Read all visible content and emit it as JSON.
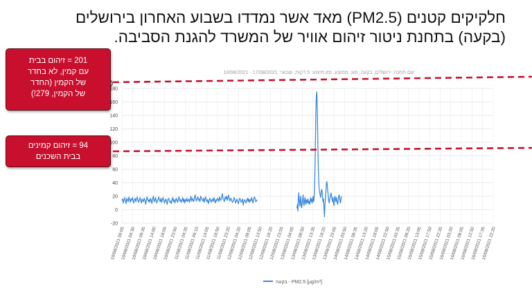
{
  "slide": {
    "title_line1": "חלקיקים קטנים (PM2.5) מאד אשר נמדדו בשבוע האחרון בירושלים",
    "title_line2": "(בקעה) בתחנת ניטור זיהום אוויר של המשרד להגנת הסביבה."
  },
  "callouts": {
    "top_lines": [
      "201 = זיהום בבית",
      "עם קמין, לא בחדר",
      "של הקמין (החדר",
      "של הקמין, 279!)"
    ],
    "bottom_lines": [
      "94 = זיהום קמינים",
      "בבית השכנים"
    ],
    "color": "#c8102e"
  },
  "reference_lines": {
    "upper_label": "200",
    "color": "#c8102e"
  },
  "chart_data": {
    "type": "line",
    "subtitle": "שם תחנה: ירושלים, בקעה, סוג: ממוצע, זמן מיצוע: 5 דקות, שבועי: 17/08/2021 - 10/08/2021",
    "ylim": [
      -20,
      180
    ],
    "yticks": [
      -20,
      0,
      20,
      40,
      60,
      80,
      100,
      120,
      140,
      160,
      180
    ],
    "ytick_labels": [
      "-20",
      "0",
      "20",
      "40",
      "60",
      "80",
      "100",
      "120",
      "140",
      "160",
      "180"
    ],
    "grid": true,
    "legend_position": "bottom-center",
    "line_color": "#3b8ad9",
    "xtick_labels": [
      "10/08/2021 00:05",
      "10/08/2021 04:30",
      "10/08/2021 09:35",
      "10/08/2021 14:00",
      "10/08/2021 18:05",
      "10/08/2021 23:50",
      "11/08/2021 04:35",
      "11/08/2021 09:10",
      "11/08/2021 14:05",
      "11/08/2021 18:50",
      "11/08/2021 23:20",
      "12/08/2021 04:20",
      "12/08/2021 09:05",
      "12/08/2021 13:50",
      "12/08/2021 18:20",
      "12/08/2021 23:55",
      "13/08/2021 04:05",
      "13/08/2021 08:50",
      "13/08/2021 13:35",
      "13/08/2021 18:20",
      "13/08/2021 23:05",
      "14/08/2021 03:50",
      "14/08/2021 08:35",
      "14/08/2021 13:20",
      "14/08/2021 18:05",
      "14/08/2021 22:50",
      "15/08/2021 03:35",
      "15/08/2021 08:20",
      "15/08/2021 13:05",
      "15/08/2021 17:50",
      "15/08/2021 22:35",
      "16/08/2021 03:20",
      "16/08/2021 08:05",
      "16/08/2021 12:50",
      "16/08/2021 17:35",
      "16/08/2021 22:20"
    ],
    "series": [
      {
        "name": "בקעה - PM2.5 [µg/m³]",
        "segments": [
          {
            "x_start": 0.0,
            "x_end": 12.75,
            "values": [
              14,
              16,
              10,
              15,
              18,
              13,
              9,
              17,
              14,
              12,
              19,
              15,
              11,
              16,
              14,
              18,
              13,
              10,
              15,
              17,
              12,
              16,
              19,
              14,
              11,
              15,
              18,
              13,
              10,
              16,
              14,
              12,
              17,
              15,
              8,
              13,
              19,
              16,
              12,
              15,
              11,
              17,
              14,
              9,
              16,
              20,
              14,
              12,
              18,
              15,
              10,
              13,
              16,
              19,
              14,
              12,
              17,
              11,
              15,
              18,
              14,
              10,
              13,
              16,
              12,
              8,
              15,
              17,
              14,
              11,
              13,
              9,
              16,
              18,
              12,
              15,
              10,
              14,
              17,
              13,
              11,
              16,
              19,
              13,
              15,
              11,
              14,
              18,
              12,
              16,
              10,
              15,
              13,
              17,
              12,
              14,
              16,
              11,
              15,
              20,
              13,
              17,
              14,
              12,
              18,
              22,
              15,
              13,
              17,
              19,
              14,
              16,
              12,
              20,
              18,
              15,
              13,
              17,
              11,
              16,
              19,
              14,
              12,
              15,
              9,
              13,
              17,
              15,
              11,
              14,
              16,
              12,
              18,
              14,
              10,
              15,
              13,
              17,
              16,
              12,
              19,
              15,
              14,
              18,
              24,
              17,
              15,
              12,
              19,
              16,
              20,
              14,
              18,
              22,
              15,
              13,
              17,
              16,
              12,
              11,
              14,
              18,
              15,
              10,
              13,
              16,
              12,
              9,
              14,
              17,
              15,
              11,
              13,
              16,
              7,
              12,
              15,
              13,
              10,
              14,
              17,
              12,
              16,
              11,
              15,
              13,
              18,
              14,
              10,
              16,
              19,
              17,
              12,
              13,
              15
            ]
          },
          {
            "x_start": 16.5,
            "x_end": 20.7,
            "values": [
              2,
              8,
              -2,
              18,
              25,
              12,
              5,
              14,
              20,
              7,
              3,
              10,
              16,
              22,
              9,
              6,
              13,
              18,
              11,
              8,
              15,
              12,
              10,
              16,
              14,
              9,
              12,
              8,
              14,
              18,
              12,
              16,
              10,
              14,
              20,
              12,
              15,
              30,
              60,
              105,
              150,
              170,
              175,
              145,
              100,
              65,
              40,
              30,
              25,
              22,
              18,
              26,
              30,
              28,
              18,
              12,
              16,
              4,
              -10,
              8,
              15,
              25,
              38,
              42,
              36,
              28,
              22,
              14,
              10,
              15,
              18,
              22,
              25,
              20,
              16,
              12,
              18,
              10,
              6,
              14,
              20,
              16,
              12,
              18,
              15,
              10,
              8,
              14,
              20,
              22,
              18,
              12,
              10,
              16,
              20
            ]
          }
        ]
      }
    ]
  }
}
